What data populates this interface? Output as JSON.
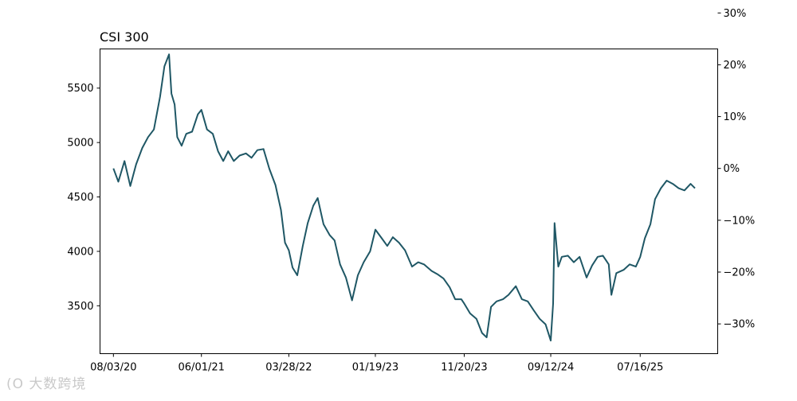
{
  "chart_data": {
    "type": "line",
    "title": "CSI 300",
    "xlabel": "",
    "ylabel": "",
    "line_color": "#1f5765",
    "x_ticks": [
      "08/03/20",
      "06/01/21",
      "03/28/22",
      "01/19/23",
      "11/20/23",
      "09/12/24",
      "07/16/25"
    ],
    "x_range": [
      "2020-06-18",
      "2026-04-08"
    ],
    "ylim": [
      3060,
      5860
    ],
    "y_ticks": [
      3500,
      4000,
      4500,
      5000,
      5500
    ],
    "y2lim": [
      "-34.3%",
      "31.2%"
    ],
    "y2_ticks": [
      "30%",
      "20%",
      "10%",
      "0%",
      "−10%",
      "−20%",
      "−30%"
    ],
    "y2_tick_values": [
      30,
      20,
      10,
      0,
      -10,
      -20,
      -30
    ],
    "baseline": 4762,
    "grid": false,
    "series": [
      {
        "x": [
          "2020-08-03",
          "2020-08-20",
          "2020-09-10",
          "2020-09-30",
          "2020-10-20",
          "2020-11-10",
          "2020-11-30",
          "2020-12-20",
          "2021-01-10",
          "2021-01-25",
          "2021-02-10",
          "2021-02-18",
          "2021-03-01",
          "2021-03-10",
          "2021-03-25",
          "2021-04-10",
          "2021-04-30",
          "2021-05-20",
          "2021-06-01",
          "2021-06-20",
          "2021-07-10",
          "2021-07-28",
          "2021-08-15",
          "2021-09-01",
          "2021-09-20",
          "2021-10-10",
          "2021-11-01",
          "2021-11-20",
          "2021-12-10",
          "2021-12-31",
          "2022-01-20",
          "2022-02-10",
          "2022-03-01",
          "2022-03-15",
          "2022-03-28",
          "2022-04-10",
          "2022-04-26",
          "2022-05-15",
          "2022-06-01",
          "2022-06-20",
          "2022-07-05",
          "2022-07-25",
          "2022-08-15",
          "2022-09-01",
          "2022-09-20",
          "2022-10-10",
          "2022-10-31",
          "2022-11-20",
          "2022-12-10",
          "2023-01-01",
          "2023-01-19",
          "2023-02-10",
          "2023-03-01",
          "2023-03-20",
          "2023-04-10",
          "2023-05-01",
          "2023-05-25",
          "2023-06-15",
          "2023-07-05",
          "2023-07-31",
          "2023-08-20",
          "2023-09-10",
          "2023-10-01",
          "2023-10-20",
          "2023-11-10",
          "2023-11-20",
          "2023-12-10",
          "2024-01-01",
          "2024-01-20",
          "2024-02-05",
          "2024-02-20",
          "2024-03-10",
          "2024-04-01",
          "2024-04-20",
          "2024-05-15",
          "2024-06-05",
          "2024-06-25",
          "2024-07-15",
          "2024-08-05",
          "2024-08-25",
          "2024-09-12",
          "2024-09-20",
          "2024-09-25",
          "2024-10-08",
          "2024-10-20",
          "2024-11-10",
          "2024-11-30",
          "2024-12-20",
          "2025-01-13",
          "2025-02-01",
          "2025-02-20",
          "2025-03-10",
          "2025-03-30",
          "2025-04-08",
          "2025-04-25",
          "2025-05-20",
          "2025-06-10",
          "2025-07-01",
          "2025-07-16",
          "2025-08-01",
          "2025-08-20",
          "2025-09-05",
          "2025-09-25",
          "2025-10-15",
          "2025-11-05",
          "2025-11-25",
          "2025-12-15",
          "2026-01-05",
          "2026-01-20"
        ],
        "values": [
          4762,
          4640,
          4830,
          4600,
          4800,
          4950,
          5050,
          5120,
          5420,
          5700,
          5810,
          5450,
          5350,
          5050,
          4970,
          5080,
          5100,
          5260,
          5300,
          5120,
          5080,
          4920,
          4830,
          4920,
          4830,
          4880,
          4900,
          4860,
          4930,
          4940,
          4760,
          4610,
          4380,
          4080,
          4010,
          3850,
          3780,
          4050,
          4260,
          4420,
          4490,
          4250,
          4150,
          4100,
          3880,
          3760,
          3550,
          3780,
          3900,
          4000,
          4200,
          4120,
          4050,
          4130,
          4080,
          4010,
          3860,
          3900,
          3880,
          3820,
          3790,
          3750,
          3670,
          3560,
          3560,
          3520,
          3430,
          3380,
          3250,
          3210,
          3490,
          3540,
          3560,
          3600,
          3680,
          3560,
          3540,
          3460,
          3380,
          3330,
          3180,
          3520,
          4260,
          3860,
          3950,
          3960,
          3900,
          3950,
          3760,
          3870,
          3950,
          3960,
          3880,
          3600,
          3800,
          3830,
          3880,
          3860,
          3950,
          4120,
          4250,
          4480,
          4580,
          4650,
          4620,
          4580,
          4560,
          4620,
          4580
        ]
      }
    ]
  },
  "watermark": "(O 大数跨境"
}
